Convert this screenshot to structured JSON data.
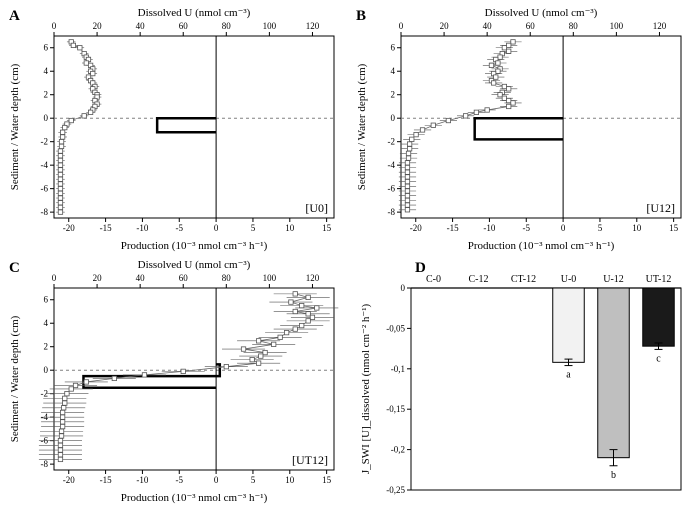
{
  "colors": {
    "bg": "#ffffff",
    "axis": "#000000",
    "grid_dash": "#808080",
    "marker_stroke": "#555555",
    "marker_fill": "#ffffff",
    "profile_line": "#666666",
    "thick_line": "#000000",
    "bar_stroke": "#000000",
    "bar_U0": "#f2f2f2",
    "bar_U12": "#bfbfbf",
    "bar_UT12": "#1a1a1a"
  },
  "fonts": {
    "axis_label": 11,
    "tick": 9,
    "panel_label": 15,
    "inset_label": 12,
    "bar_letter": 10
  },
  "profile_chart": {
    "xlim": [
      -22,
      16
    ],
    "xticks": [
      -20,
      -15,
      -10,
      -5,
      0,
      5,
      10,
      15
    ],
    "ylim": [
      -8.5,
      7
    ],
    "yticks": [
      -8,
      -6,
      -4,
      -2,
      0,
      2,
      4,
      6
    ],
    "top_xlim": [
      0,
      130
    ],
    "top_xticks": [
      0,
      20,
      40,
      60,
      80,
      100,
      120
    ],
    "x_label_bottom": "Production (10⁻³ nmol cm⁻³ h⁻¹)",
    "x_label_top": "Dissolved U (nmol cm⁻³)",
    "y_label": "Sediment / Water depth (cm)"
  },
  "panelA": {
    "label": "A",
    "inset": "[U0]",
    "prod_step": {
      "x": [
        0,
        -8,
        -8,
        0
      ],
      "y": [
        0,
        0,
        -1.2,
        -1.2
      ]
    },
    "marker_dissolvedU": [
      [
        8,
        6.5
      ],
      [
        9,
        6.2
      ],
      [
        12,
        6.0
      ],
      [
        14,
        5.5
      ],
      [
        15,
        5.2
      ],
      [
        16,
        5.0
      ],
      [
        15,
        4.7
      ],
      [
        17,
        4.5
      ],
      [
        18,
        4.2
      ],
      [
        17,
        4.0
      ],
      [
        18,
        3.8
      ],
      [
        16,
        3.5
      ],
      [
        17,
        3.2
      ],
      [
        18,
        3.0
      ],
      [
        19,
        2.7
      ],
      [
        18,
        2.5
      ],
      [
        19,
        2.2
      ],
      [
        20,
        2.0
      ],
      [
        20,
        1.8
      ],
      [
        19,
        1.5
      ],
      [
        20,
        1.2
      ],
      [
        19,
        1.0
      ],
      [
        18,
        0.7
      ],
      [
        17,
        0.5
      ],
      [
        14,
        0.2
      ],
      [
        8,
        -0.2
      ],
      [
        6,
        -0.5
      ],
      [
        5,
        -0.8
      ],
      [
        4,
        -1.2
      ],
      [
        4,
        -1.6
      ],
      [
        3.5,
        -2.0
      ],
      [
        3.5,
        -2.4
      ],
      [
        3,
        -2.8
      ],
      [
        3,
        -3.2
      ],
      [
        3,
        -3.6
      ],
      [
        3,
        -4.0
      ],
      [
        3,
        -4.4
      ],
      [
        3,
        -4.8
      ],
      [
        3,
        -5.2
      ],
      [
        3,
        -5.6
      ],
      [
        3,
        -6.0
      ],
      [
        3,
        -6.4
      ],
      [
        3,
        -6.8
      ],
      [
        3,
        -7.2
      ],
      [
        3,
        -7.6
      ],
      [
        3,
        -8.0
      ]
    ],
    "err_top": 2
  },
  "panelB": {
    "label": "B",
    "inset": "[U12]",
    "prod_step": {
      "x": [
        0,
        -12,
        -12,
        0
      ],
      "y": [
        0,
        0,
        -1.8,
        -1.8
      ]
    },
    "marker_dissolvedU": [
      [
        52,
        6.5
      ],
      [
        50,
        6.2
      ],
      [
        48,
        6.0
      ],
      [
        50,
        5.7
      ],
      [
        47,
        5.5
      ],
      [
        46,
        5.2
      ],
      [
        44,
        5.0
      ],
      [
        45,
        4.7
      ],
      [
        42,
        4.5
      ],
      [
        46,
        4.2
      ],
      [
        45,
        4.0
      ],
      [
        43,
        3.8
      ],
      [
        44,
        3.5
      ],
      [
        42,
        3.2
      ],
      [
        43,
        3.0
      ],
      [
        48,
        2.7
      ],
      [
        50,
        2.5
      ],
      [
        47,
        2.2
      ],
      [
        46,
        2.0
      ],
      [
        48,
        1.7
      ],
      [
        50,
        1.5
      ],
      [
        52,
        1.3
      ],
      [
        50,
        1.0
      ],
      [
        40,
        0.7
      ],
      [
        35,
        0.5
      ],
      [
        30,
        0.2
      ],
      [
        22,
        -0.2
      ],
      [
        15,
        -0.6
      ],
      [
        10,
        -1.0
      ],
      [
        7,
        -1.4
      ],
      [
        5,
        -1.8
      ],
      [
        4,
        -2.2
      ],
      [
        4,
        -2.6
      ],
      [
        3.5,
        -3.0
      ],
      [
        3.5,
        -3.4
      ],
      [
        3,
        -3.8
      ],
      [
        3,
        -4.2
      ],
      [
        3,
        -4.6
      ],
      [
        3,
        -5.0
      ],
      [
        3,
        -5.4
      ],
      [
        3,
        -5.8
      ],
      [
        3,
        -6.2
      ],
      [
        3,
        -6.6
      ],
      [
        3,
        -7.0
      ],
      [
        3,
        -7.4
      ],
      [
        3,
        -7.8
      ]
    ],
    "err_top": 4
  },
  "panelC": {
    "label": "C",
    "inset": "[UT12]",
    "prod_step": {
      "x": [
        0,
        0.5,
        0.5,
        -18,
        -18,
        0
      ],
      "y": [
        0.5,
        0.5,
        -0.5,
        -0.5,
        -1.5,
        -1.5
      ]
    },
    "marker_dissolvedU": [
      [
        112,
        6.5
      ],
      [
        118,
        6.2
      ],
      [
        110,
        5.8
      ],
      [
        115,
        5.5
      ],
      [
        122,
        5.3
      ],
      [
        112,
        5.0
      ],
      [
        118,
        4.8
      ],
      [
        120,
        4.5
      ],
      [
        118,
        4.2
      ],
      [
        115,
        3.8
      ],
      [
        112,
        3.5
      ],
      [
        108,
        3.2
      ],
      [
        105,
        2.8
      ],
      [
        95,
        2.5
      ],
      [
        102,
        2.2
      ],
      [
        88,
        1.8
      ],
      [
        98,
        1.5
      ],
      [
        96,
        1.2
      ],
      [
        92,
        0.9
      ],
      [
        95,
        0.6
      ],
      [
        80,
        0.3
      ],
      [
        60,
        -0.1
      ],
      [
        42,
        -0.4
      ],
      [
        28,
        -0.7
      ],
      [
        15,
        -1.0
      ],
      [
        10,
        -1.3
      ],
      [
        8,
        -1.6
      ],
      [
        6,
        -2.0
      ],
      [
        5,
        -2.4
      ],
      [
        5,
        -2.8
      ],
      [
        4.5,
        -3.2
      ],
      [
        4,
        -3.6
      ],
      [
        4,
        -4.0
      ],
      [
        4,
        -4.4
      ],
      [
        4,
        -4.8
      ],
      [
        3.5,
        -5.2
      ],
      [
        3.5,
        -5.6
      ],
      [
        3,
        -6.0
      ],
      [
        3,
        -6.4
      ],
      [
        3,
        -6.8
      ],
      [
        3,
        -7.2
      ],
      [
        3,
        -7.6
      ]
    ],
    "err_top": 10
  },
  "panelD": {
    "label": "D",
    "categories": [
      "C-0",
      "C-12",
      "CT-12",
      "U-0",
      "U-12",
      "UT-12"
    ],
    "values": [
      0,
      0,
      0,
      -0.092,
      -0.21,
      -0.072
    ],
    "errors": [
      0,
      0,
      0,
      0.004,
      0.01,
      0.004
    ],
    "sig_letters": [
      "",
      "",
      "",
      "a",
      "b",
      "c"
    ],
    "bar_fills": [
      "#f2f2f2",
      "#bfbfbf",
      "#1a1a1a",
      "#f2f2f2",
      "#bfbfbf",
      "#1a1a1a"
    ],
    "ylim": [
      -0.25,
      0
    ],
    "yticks": [
      0,
      -0.05,
      -0.1,
      -0.15,
      -0.2,
      -0.25
    ],
    "ytick_labels": [
      "0",
      "-0,05",
      "-0,1",
      "-0,15",
      "-0,2",
      "-0,25"
    ],
    "y_label": "J_SWI [U]_dissolved (nmol cm⁻² h⁻¹)"
  }
}
